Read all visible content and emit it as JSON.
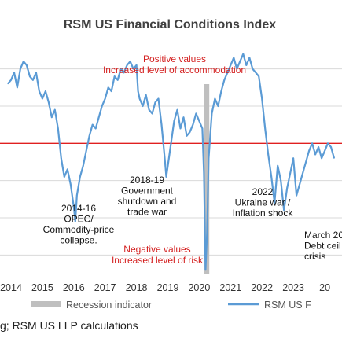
{
  "chart_data": {
    "type": "line",
    "title": "RSM US Financial Conditions Index",
    "x_ticks": [
      "2014",
      "2015",
      "2016",
      "2017",
      "2018",
      "2019",
      "2020",
      "2021",
      "2022",
      "2023",
      "20"
    ],
    "reference_line": {
      "value": 0,
      "color": "#e02020"
    },
    "grid": "horizontal",
    "series": [
      {
        "name": "RSM US F",
        "color": "#5b9bd5",
        "points": [
          [
            2013.9,
            0.8
          ],
          [
            2014.0,
            0.85
          ],
          [
            2014.1,
            0.95
          ],
          [
            2014.2,
            0.75
          ],
          [
            2014.3,
            1.0
          ],
          [
            2014.4,
            1.1
          ],
          [
            2014.5,
            1.05
          ],
          [
            2014.6,
            0.9
          ],
          [
            2014.7,
            0.85
          ],
          [
            2014.8,
            0.95
          ],
          [
            2014.9,
            0.7
          ],
          [
            2015.0,
            0.6
          ],
          [
            2015.1,
            0.7
          ],
          [
            2015.2,
            0.55
          ],
          [
            2015.3,
            0.35
          ],
          [
            2015.4,
            0.45
          ],
          [
            2015.5,
            0.2
          ],
          [
            2015.6,
            -0.2
          ],
          [
            2015.7,
            -0.45
          ],
          [
            2015.8,
            -0.35
          ],
          [
            2015.9,
            -0.55
          ],
          [
            2016.0,
            -0.85
          ],
          [
            2016.05,
            -1.05
          ],
          [
            2016.1,
            -0.7
          ],
          [
            2016.2,
            -0.45
          ],
          [
            2016.3,
            -0.3
          ],
          [
            2016.4,
            -0.1
          ],
          [
            2016.5,
            0.1
          ],
          [
            2016.6,
            0.25
          ],
          [
            2016.7,
            0.2
          ],
          [
            2016.8,
            0.35
          ],
          [
            2016.9,
            0.5
          ],
          [
            2017.0,
            0.6
          ],
          [
            2017.1,
            0.75
          ],
          [
            2017.2,
            0.7
          ],
          [
            2017.3,
            0.9
          ],
          [
            2017.4,
            0.85
          ],
          [
            2017.5,
            1.0
          ],
          [
            2017.6,
            0.95
          ],
          [
            2017.7,
            1.05
          ],
          [
            2017.8,
            1.1
          ],
          [
            2017.9,
            1.0
          ],
          [
            2018.0,
            1.05
          ],
          [
            2018.05,
            0.7
          ],
          [
            2018.1,
            0.6
          ],
          [
            2018.2,
            0.5
          ],
          [
            2018.3,
            0.65
          ],
          [
            2018.4,
            0.45
          ],
          [
            2018.5,
            0.4
          ],
          [
            2018.6,
            0.55
          ],
          [
            2018.7,
            0.6
          ],
          [
            2018.8,
            0.25
          ],
          [
            2018.9,
            -0.2
          ],
          [
            2018.95,
            -0.45
          ],
          [
            2019.0,
            -0.3
          ],
          [
            2019.1,
            0.0
          ],
          [
            2019.2,
            0.3
          ],
          [
            2019.3,
            0.45
          ],
          [
            2019.4,
            0.2
          ],
          [
            2019.5,
            0.35
          ],
          [
            2019.6,
            0.1
          ],
          [
            2019.7,
            0.15
          ],
          [
            2019.8,
            0.25
          ],
          [
            2019.9,
            0.4
          ],
          [
            2020.0,
            0.3
          ],
          [
            2020.1,
            0.2
          ],
          [
            2020.15,
            -0.4
          ],
          [
            2020.2,
            -1.7
          ],
          [
            2020.25,
            -1.2
          ],
          [
            2020.3,
            -0.2
          ],
          [
            2020.4,
            0.4
          ],
          [
            2020.5,
            0.6
          ],
          [
            2020.6,
            0.5
          ],
          [
            2020.7,
            0.7
          ],
          [
            2020.8,
            0.85
          ],
          [
            2020.9,
            0.95
          ],
          [
            2021.0,
            1.05
          ],
          [
            2021.1,
            1.15
          ],
          [
            2021.2,
            1.0
          ],
          [
            2021.3,
            1.1
          ],
          [
            2021.4,
            1.2
          ],
          [
            2021.5,
            1.05
          ],
          [
            2021.6,
            1.15
          ],
          [
            2021.7,
            1.0
          ],
          [
            2021.8,
            0.95
          ],
          [
            2021.9,
            0.9
          ],
          [
            2022.0,
            0.6
          ],
          [
            2022.1,
            0.2
          ],
          [
            2022.2,
            -0.15
          ],
          [
            2022.3,
            -0.45
          ],
          [
            2022.4,
            -0.8
          ],
          [
            2022.5,
            -0.3
          ],
          [
            2022.6,
            -0.5
          ],
          [
            2022.7,
            -0.9
          ],
          [
            2022.8,
            -0.6
          ],
          [
            2022.9,
            -0.4
          ],
          [
            2023.0,
            -0.2
          ],
          [
            2023.1,
            -0.7
          ],
          [
            2023.2,
            -0.55
          ],
          [
            2023.3,
            -0.4
          ],
          [
            2023.4,
            -0.25
          ],
          [
            2023.5,
            -0.1
          ],
          [
            2023.6,
            0.0
          ],
          [
            2023.7,
            -0.15
          ],
          [
            2023.8,
            -0.05
          ],
          [
            2023.9,
            -0.2
          ],
          [
            2024.0,
            -0.1
          ],
          [
            2024.1,
            0.0
          ],
          [
            2024.2,
            -0.05
          ],
          [
            2024.3,
            -0.2
          ]
        ]
      }
    ],
    "recession_band": {
      "start": 2020.15,
      "end": 2020.32,
      "color": "#bfbfbf"
    },
    "annotations": [
      {
        "lines": [
          "Positive values",
          "Increased level of accommodation"
        ],
        "color": "#d42020"
      },
      {
        "lines": [
          "Negative values",
          "Increased level of risk"
        ],
        "color": "#d42020"
      },
      {
        "lines": [
          "2014-16",
          "OPEC/",
          "Commodity-price",
          "collapse."
        ],
        "color": "#111111"
      },
      {
        "lines": [
          "2018-19",
          "Government",
          "shutdown and",
          "trade war"
        ],
        "color": "#111111"
      },
      {
        "lines": [
          "2022",
          "Ukraine war /",
          "Inflation shock"
        ],
        "color": "#111111"
      },
      {
        "lines": [
          "March 20",
          "Debt ceil",
          "crisis"
        ],
        "color": "#111111"
      }
    ],
    "legend": [
      {
        "label": "Recession indicator",
        "color": "#bfbfbf",
        "kind": "bar"
      },
      {
        "label": "RSM US F",
        "color": "#5b9bd5",
        "kind": "line"
      }
    ],
    "source": "g; RSM US LLP calculations"
  }
}
